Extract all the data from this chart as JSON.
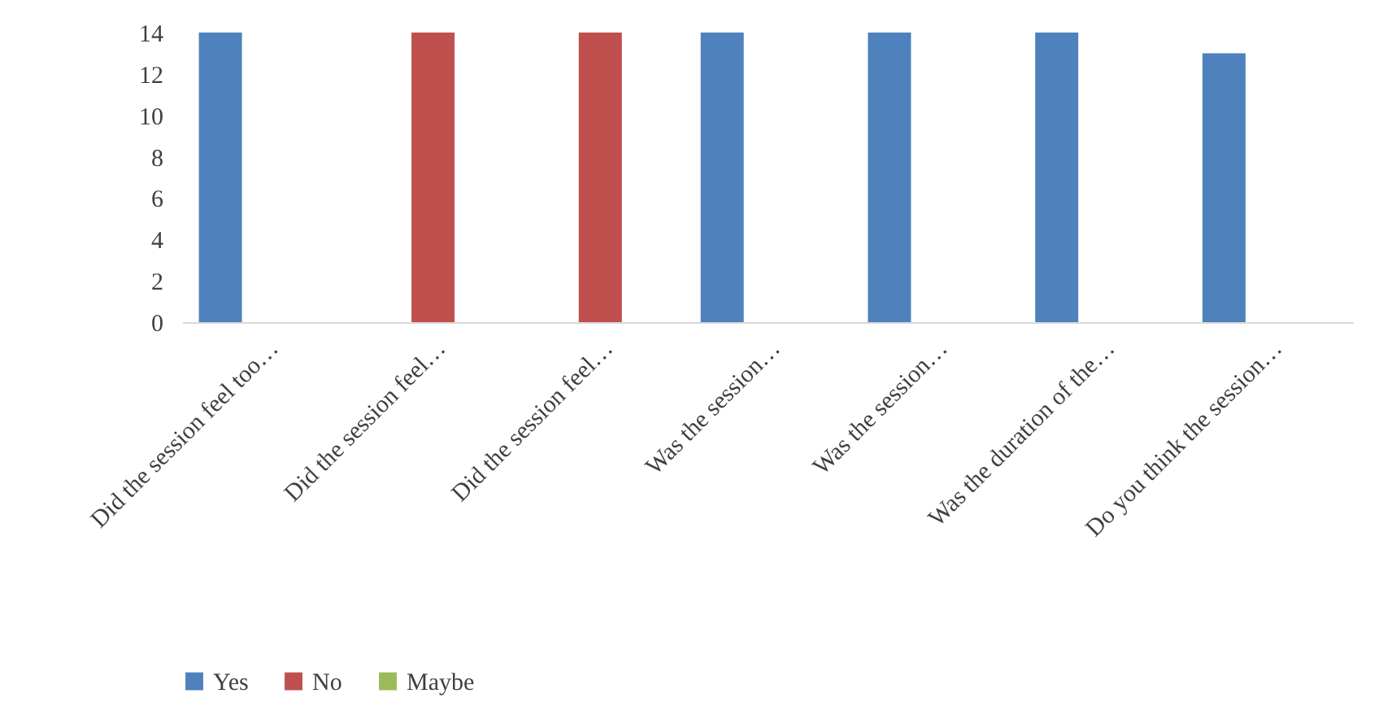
{
  "chart_data": {
    "type": "bar",
    "categories": [
      "Did the session feel too…",
      "Did the session feel…",
      "Did the session feel…",
      "Was the session…",
      "Was the session…",
      "Was the duration of the…",
      "Do you think the session…"
    ],
    "series": [
      {
        "name": "Yes",
        "color": "#4f81bd",
        "values": [
          14,
          0,
          0,
          14,
          14,
          14,
          13
        ]
      },
      {
        "name": "No",
        "color": "#c0504d",
        "values": [
          0,
          14,
          14,
          0,
          0,
          0,
          0
        ]
      },
      {
        "name": "Maybe",
        "color": "#9bbb59",
        "values": [
          0,
          0,
          0,
          0,
          0,
          0,
          0
        ]
      }
    ],
    "ylim": [
      0,
      14
    ],
    "yticks": [
      0,
      2,
      4,
      6,
      8,
      10,
      12,
      14
    ],
    "grid": false,
    "legend": "bottom"
  }
}
